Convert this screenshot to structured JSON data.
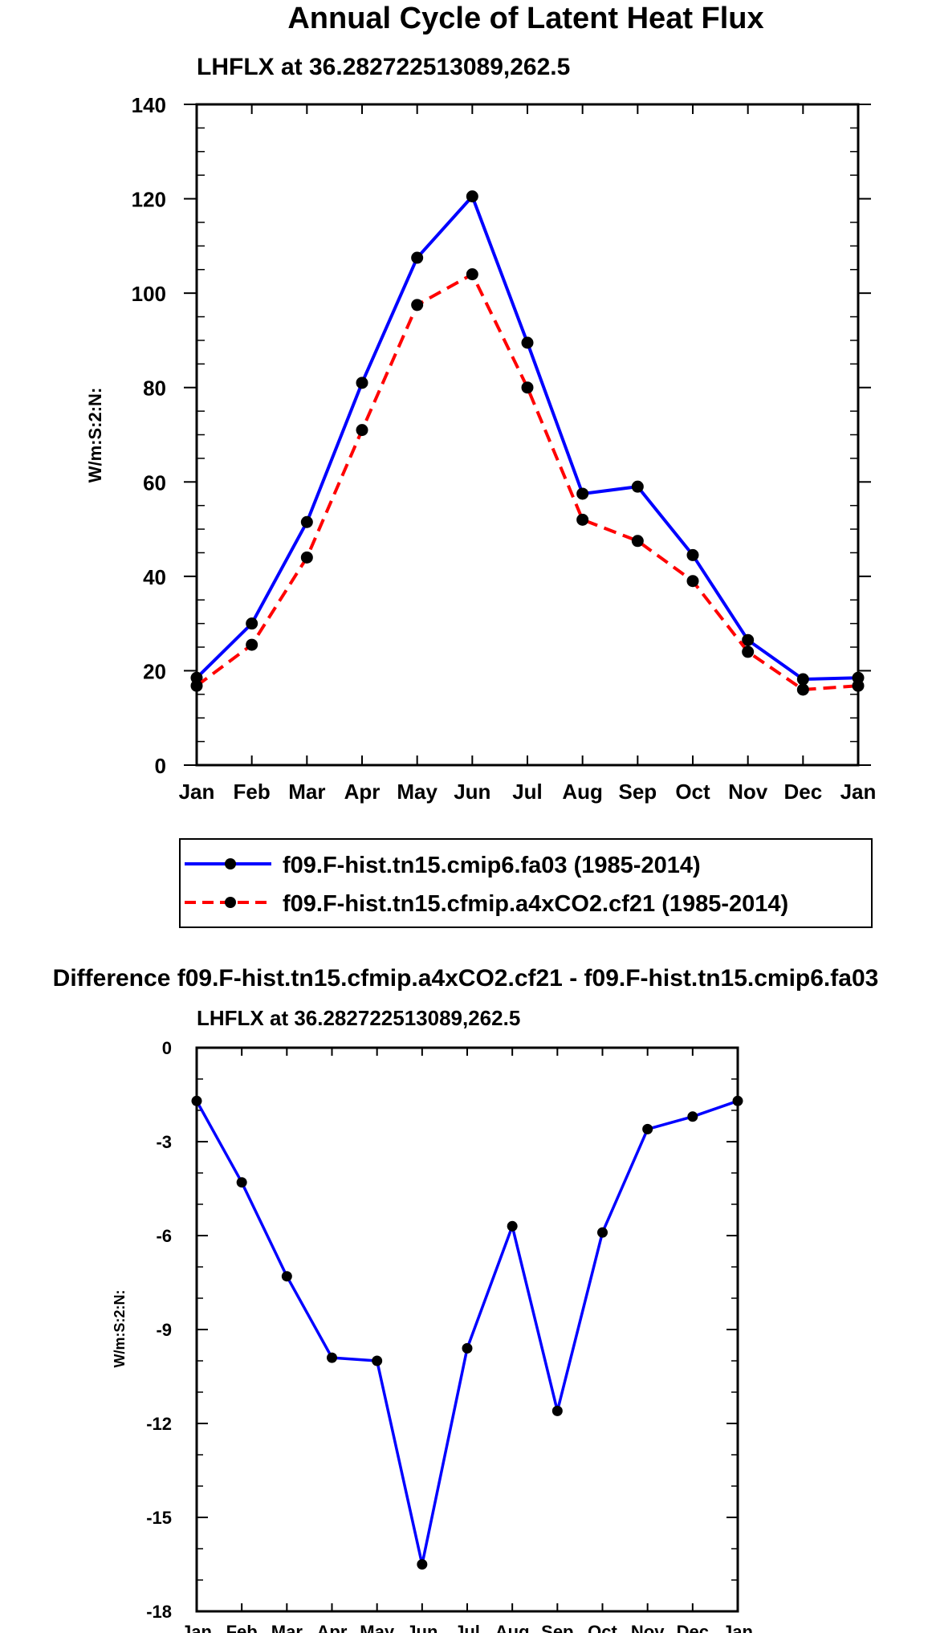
{
  "chart_data": [
    {
      "type": "line",
      "title": "Annual Cycle of Latent Heat Flux",
      "subtitle": "LHFLX at 36.282722513089,262.5",
      "ylabel": "W/m:S:2:N:",
      "xlabel": "",
      "categories": [
        "Jan",
        "Feb",
        "Mar",
        "Apr",
        "May",
        "Jun",
        "Jul",
        "Aug",
        "Sep",
        "Oct",
        "Nov",
        "Dec",
        "Jan"
      ],
      "ylim": [
        0,
        140
      ],
      "yticks": [
        "0",
        "20",
        "40",
        "60",
        "80",
        "100",
        "120",
        "140"
      ],
      "series": [
        {
          "name": "f09.F-hist.tn15.cmip6.fa03 (1985-2014)",
          "color": "#0000ff",
          "dash": "solid",
          "values": [
            18.5,
            30.0,
            51.5,
            81.0,
            107.5,
            120.5,
            89.5,
            57.5,
            59.0,
            44.5,
            26.5,
            18.2,
            18.5
          ]
        },
        {
          "name": "f09.F-hist.tn15.cfmip.a4xCO2.cf21 (1985-2014)",
          "color": "#ff0000",
          "dash": "dashed",
          "values": [
            16.8,
            25.5,
            44.0,
            71.0,
            97.5,
            104.0,
            80.0,
            52.0,
            47.5,
            39.0,
            24.0,
            16.0,
            16.8
          ]
        }
      ]
    },
    {
      "type": "line",
      "title": "Difference f09.F-hist.tn15.cfmip.a4xCO2.cf21 - f09.F-hist.tn15.cmip6.fa03",
      "subtitle": "LHFLX at 36.282722513089,262.5",
      "ylabel": "W/m:S:2:N:",
      "xlabel": "",
      "categories": [
        "Jan",
        "Feb",
        "Mar",
        "Apr",
        "May",
        "Jun",
        "Jul",
        "Aug",
        "Sep",
        "Oct",
        "Nov",
        "Dec",
        "Jan"
      ],
      "ylim": [
        -18,
        0
      ],
      "yticks": [
        "-18",
        "-15",
        "-12",
        "-9",
        "-6",
        "-3",
        "0"
      ],
      "series": [
        {
          "name": "Difference",
          "color": "#0000ff",
          "dash": "solid",
          "values": [
            -1.7,
            -4.3,
            -7.3,
            -9.9,
            -10.0,
            -16.5,
            -9.6,
            -5.7,
            -11.6,
            -5.9,
            -2.6,
            -2.2,
            -1.7
          ]
        }
      ]
    }
  ]
}
